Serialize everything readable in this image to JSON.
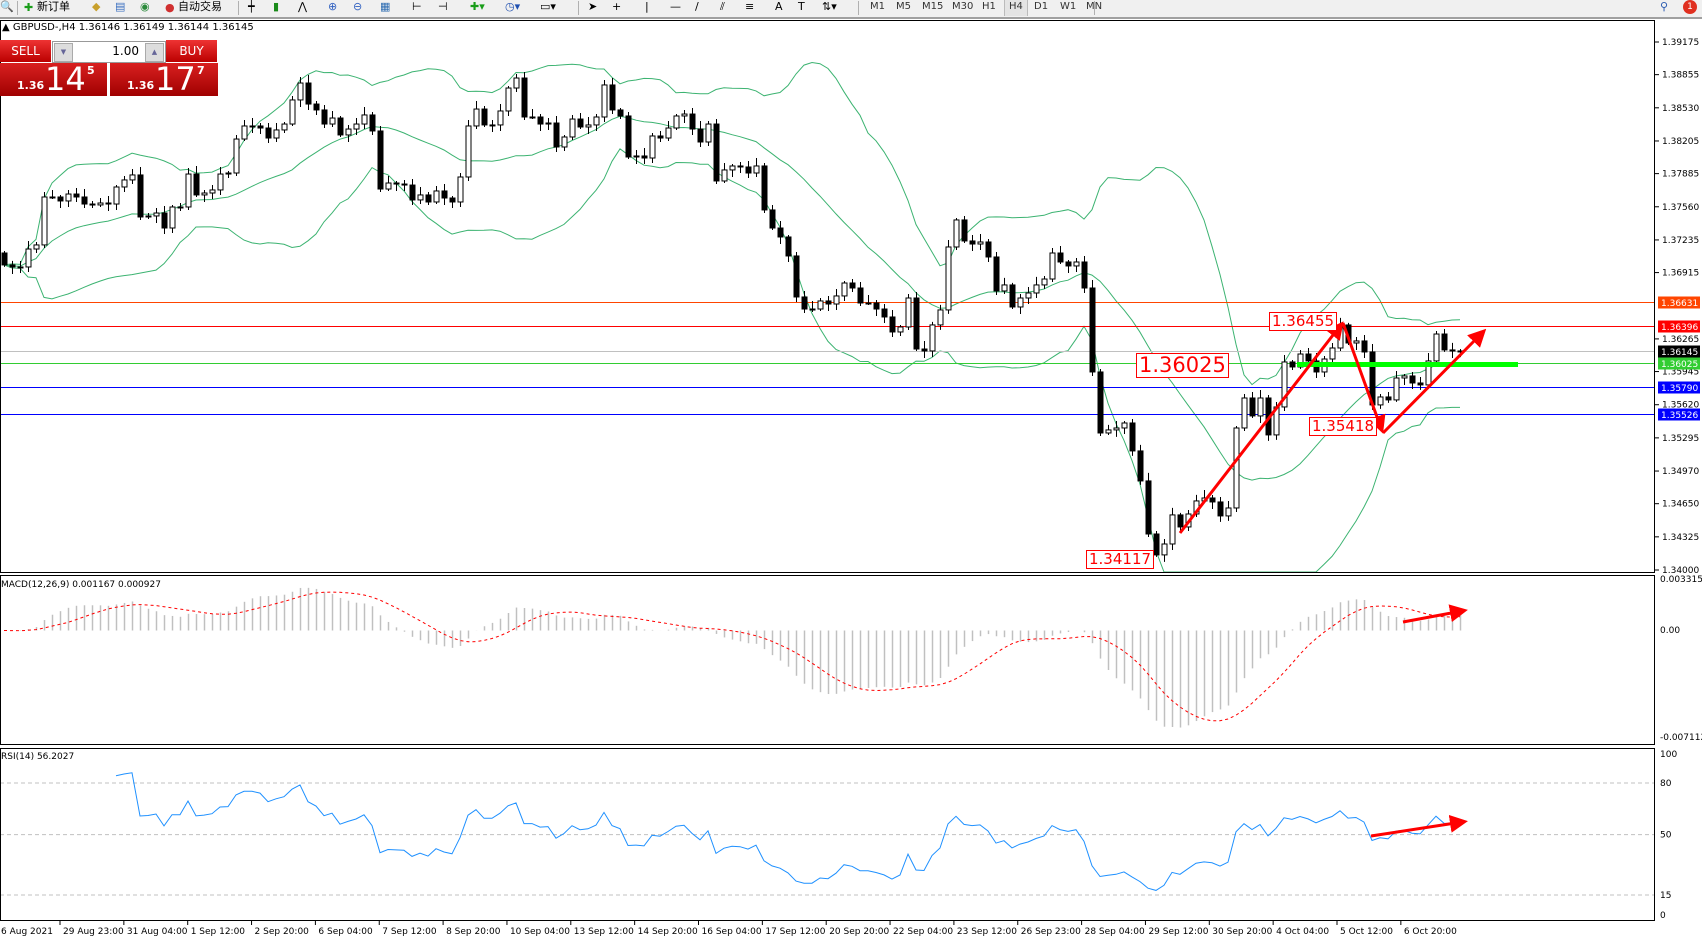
{
  "toolbar": {
    "new_order": "新订单",
    "auto_trading": "自动交易",
    "timeframes": [
      "M1",
      "M5",
      "M15",
      "M30",
      "H1",
      "H4",
      "D1",
      "W1",
      "MN"
    ],
    "active_timeframe": "H4",
    "notification_count": "1"
  },
  "header": {
    "text": "GBPUSD-,H4  1.36146 1.36149 1.36144 1.36145"
  },
  "trade_panel": {
    "sell_label": "SELL",
    "buy_label": "BUY",
    "lot": "1.00",
    "sell_prefix": "1.36",
    "sell_big": "14",
    "sell_sup": "5",
    "buy_prefix": "1.36",
    "buy_big": "17",
    "buy_sup": "7"
  },
  "colors": {
    "bands": "#3cb371",
    "rsi": "#1e90ff",
    "macd_hist": "#c0c0c0",
    "macd_signal": "#ff0000",
    "annotation": "#ff0000",
    "support_bar": "#00ff00"
  },
  "chart_data": {
    "type": "candlestick",
    "symbol": "GBPUSD-",
    "timeframe": "H4",
    "first_open": 1.37107,
    "closes": [
      1.3699,
      1.3697,
      1.3697,
      1.37146,
      1.37186,
      1.37656,
      1.37656,
      1.37617,
      1.37685,
      1.37656,
      1.37587,
      1.37578,
      1.37597,
      1.37587,
      1.37754,
      1.37823,
      1.37872,
      1.3746,
      1.3747,
      1.37499,
      1.37352,
      1.37558,
      1.37558,
      1.37881,
      1.37676,
      1.37695,
      1.37725,
      1.37881,
      1.37891,
      1.38224,
      1.38352,
      1.38352,
      1.38332,
      1.38234,
      1.38313,
      1.38371,
      1.38607,
      1.38773,
      1.38567,
      1.38509,
      1.38371,
      1.3843,
      1.38264,
      1.38322,
      1.38371,
      1.3846,
      1.38303,
      1.37734,
      1.37793,
      1.37783,
      1.37773,
      1.37627,
      1.37676,
      1.37607,
      1.37715,
      1.37646,
      1.37607,
      1.37852,
      1.38352,
      1.38518,
      1.38362,
      1.38362,
      1.38499,
      1.38724,
      1.38822,
      1.3844,
      1.3844,
      1.38371,
      1.38381,
      1.38146,
      1.38244,
      1.3842,
      1.38342,
      1.38362,
      1.3844,
      1.38754,
      1.38509,
      1.3845,
      1.38048,
      1.38058,
      1.38038,
      1.38254,
      1.38234,
      1.38332,
      1.3845,
      1.38469,
      1.38322,
      1.38195,
      1.38371,
      1.37813,
      1.37921,
      1.3796,
      1.3795,
      1.37891,
      1.3796,
      1.37529,
      1.37352,
      1.37264,
      1.37078,
      1.36676,
      1.36558,
      1.36558,
      1.36637,
      1.36607,
      1.36686,
      1.36813,
      1.36764,
      1.36617,
      1.36617,
      1.36558,
      1.3648,
      1.36333,
      1.36382,
      1.36666,
      1.36166,
      1.36147,
      1.36402,
      1.36549,
      1.37166,
      1.37431,
      1.37225,
      1.37195,
      1.37215,
      1.37068,
      1.36735,
      1.36794,
      1.36578,
      1.36666,
      1.36715,
      1.36794,
      1.36852,
      1.37107,
      1.37019,
      1.3698,
      1.37019,
      1.36764,
      1.35941,
      1.35343,
      1.35373,
      1.35392,
      1.35441,
      1.35167,
      1.34873,
      1.34353,
      1.34148,
      1.34255,
      1.3454,
      1.34422,
      1.34549,
      1.34677,
      1.34706,
      1.34667,
      1.3453,
      1.34608,
      1.35392,
      1.35686,
      1.3551,
      1.35686,
      1.35324,
      1.35598,
      1.36039,
      1.3599,
      1.36117,
      1.36049,
      1.35941,
      1.36068,
      1.36176,
      1.36402,
      1.36225,
      1.36245,
      1.36137,
      1.35618,
      1.35696,
      1.35667,
      1.35882,
      1.35902,
      1.35833,
      1.35814,
      1.36049,
      1.36313,
      1.36157,
      1.36147,
      1.36145
    ],
    "price_axis": {
      "range": [
        1.34,
        1.39175
      ],
      "ticks": [
        "1.39175",
        "1.38855",
        "1.38530",
        "1.38205",
        "1.37885",
        "1.37560",
        "1.37235",
        "1.36915",
        "1.36265",
        "1.35945",
        "1.35620",
        "1.35295",
        "1.34970",
        "1.34650",
        "1.34325",
        "1.34000"
      ]
    },
    "time_axis": [
      "6 Aug 2021",
      "29 Aug 23:00",
      "31 Aug 04:00",
      "1 Sep 12:00",
      "2 Sep 20:00",
      "6 Sep 04:00",
      "7 Sep 12:00",
      "8 Sep 20:00",
      "10 Sep 04:00",
      "13 Sep 12:00",
      "14 Sep 20:00",
      "16 Sep 04:00",
      "17 Sep 12:00",
      "20 Sep 20:00",
      "22 Sep 04:00",
      "23 Sep 12:00",
      "26 Sep 23:00",
      "28 Sep 04:00",
      "29 Sep 12:00",
      "30 Sep 20:00",
      "4 Oct 04:00",
      "5 Oct 12:00",
      "6 Oct 20:00"
    ],
    "bollinger": {
      "period": 20,
      "deviation": 2
    },
    "horizontal_lines": [
      {
        "price": 1.36631,
        "label": "1.36631",
        "color": "#ff4500"
      },
      {
        "price": 1.36396,
        "label": "1.36396",
        "color": "#ff0000"
      },
      {
        "price": 1.36145,
        "label": "1.36145",
        "color": "#000000",
        "line_color": "#c0c0c0"
      },
      {
        "price": 1.36025,
        "label": "1.36025",
        "color": "#32cd32"
      },
      {
        "price": 1.3579,
        "label": "1.35790",
        "color": "#0000ff"
      },
      {
        "price": 1.35526,
        "label": "1.35526",
        "color": "#0000ff"
      }
    ],
    "annotations": {
      "high": "1.36455",
      "low": "1.34117",
      "pullback_low": "1.35418",
      "support": "1.36025"
    },
    "macd": {
      "label": "MACD(12,26,9) 0.001167 0.000927",
      "fast": 12,
      "slow": 26,
      "signal": 9,
      "range": [
        -0.007112,
        0.003315
      ],
      "ticks": [
        "0.003315",
        "0.00",
        "-0.007112"
      ]
    },
    "rsi": {
      "label": "RSI(14) 56.2027",
      "period": 14,
      "levels": [
        80,
        50,
        15
      ],
      "ticks": [
        "100",
        "80",
        "50",
        "15",
        "0"
      ]
    }
  }
}
